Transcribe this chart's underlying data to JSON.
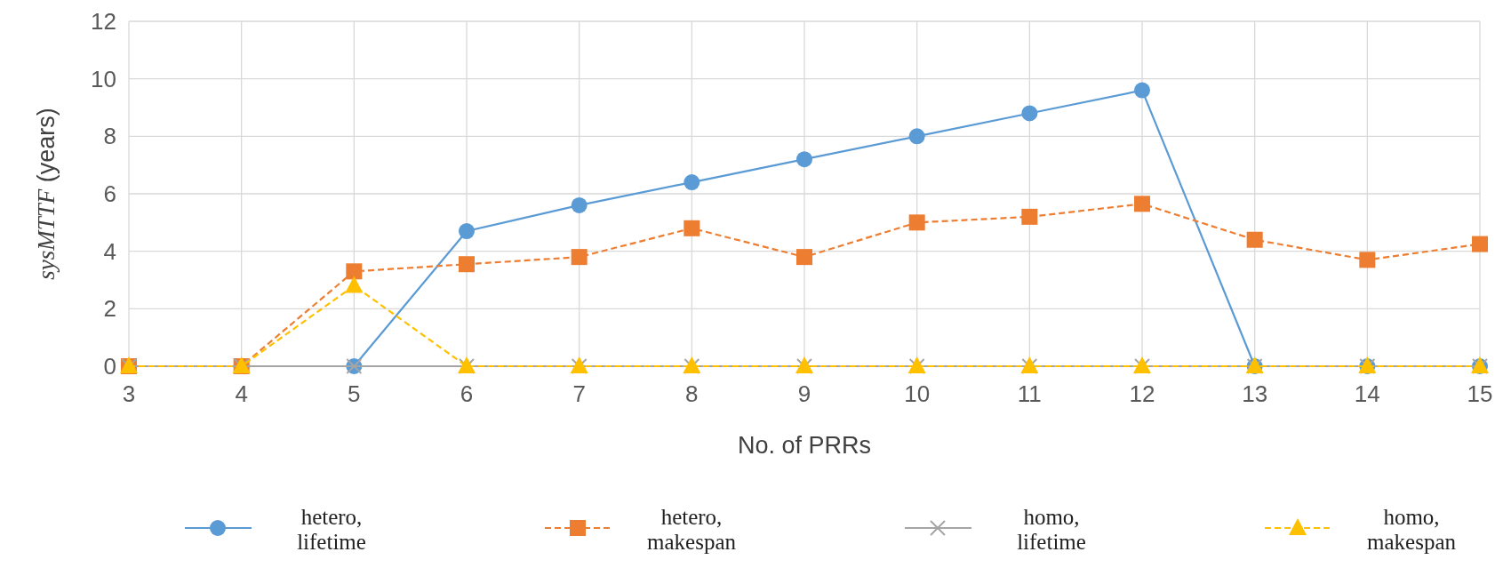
{
  "chart_data": {
    "type": "line",
    "xlabel": "No. of PRRs",
    "ylabel": "sysMTTF (years)",
    "categories": [
      "3",
      "4",
      "5",
      "6",
      "7",
      "8",
      "9",
      "10",
      "11",
      "12",
      "13",
      "14",
      "15"
    ],
    "ylim": [
      0,
      12
    ],
    "yticks": [
      0,
      2,
      4,
      6,
      8,
      10,
      12
    ],
    "grid": true,
    "legend": "bottom",
    "series": [
      {
        "name": "hetero, lifetime",
        "color": "#5b9bd5",
        "marker": "circle",
        "line_style": "solid",
        "values": [
          0,
          0,
          0,
          4.7,
          5.6,
          6.4,
          7.2,
          8.0,
          8.8,
          9.6,
          0,
          0,
          0
        ]
      },
      {
        "name": "hetero, makespan",
        "color": "#ed7d31",
        "marker": "square",
        "line_style": "dashed",
        "values": [
          0,
          0,
          3.3,
          3.55,
          3.8,
          4.8,
          3.8,
          5.0,
          5.2,
          5.65,
          4.4,
          3.7,
          4.25
        ]
      },
      {
        "name": "homo, lifetime",
        "color": "#a5a5a5",
        "marker": "cross",
        "line_style": "solid",
        "values": [
          0,
          0,
          0,
          0,
          0,
          0,
          0,
          0,
          0,
          0,
          0,
          0,
          0
        ]
      },
      {
        "name": "homo, makespan",
        "color": "#ffc000",
        "marker": "triangle",
        "line_style": "dashed",
        "values": [
          0,
          0,
          2.8,
          0,
          0,
          0,
          0,
          0,
          0,
          0,
          0,
          0,
          0
        ]
      }
    ]
  }
}
